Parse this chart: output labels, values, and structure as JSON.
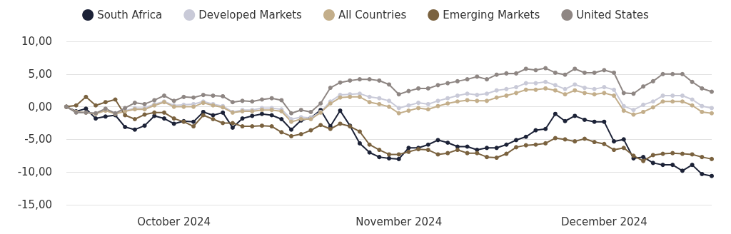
{
  "chart_data": {
    "type": "line",
    "categories": [
      null,
      null,
      null,
      null,
      null,
      null,
      null,
      null,
      null,
      null,
      null,
      "October 2024",
      null,
      null,
      null,
      null,
      null,
      null,
      null,
      null,
      null,
      null,
      null,
      null,
      null,
      null,
      null,
      null,
      null,
      null,
      null,
      null,
      null,
      null,
      "November 2024",
      null,
      null,
      null,
      null,
      null,
      null,
      null,
      null,
      null,
      null,
      null,
      null,
      null,
      null,
      null,
      null,
      null,
      null,
      null,
      null,
      "December 2024",
      null,
      null,
      null,
      null,
      null,
      null,
      null,
      null,
      null,
      null,
      null
    ],
    "series": [
      {
        "name": "South Africa",
        "color": "#1c2237",
        "values": [
          0,
          -0.7,
          -0.3,
          -1.8,
          -1.5,
          -1.3,
          -3.1,
          -3.5,
          -2.9,
          -1.4,
          -1.8,
          -2.6,
          -2.2,
          -2.3,
          -0.8,
          -1.3,
          -0.9,
          -3.2,
          -1.8,
          -1.4,
          -1.1,
          -1.3,
          -1.9,
          -3.5,
          -2.1,
          -1.7,
          -0.5,
          -3.0,
          -0.6,
          -2.9,
          -5.6,
          -7.0,
          -7.7,
          -7.9,
          -8.0,
          -6.3,
          -6.3,
          -5.8,
          -5.1,
          -5.5,
          -6.1,
          -6.1,
          -6.6,
          -6.3,
          -6.3,
          -5.8,
          -5.1,
          -4.6,
          -3.6,
          -3.4,
          -1.1,
          -2.2,
          -1.4,
          -2.0,
          -2.3,
          -2.3,
          -5.3,
          -5.0,
          -7.9,
          -7.7,
          -8.6,
          -8.9,
          -8.9,
          -9.8,
          -8.9,
          -10.3,
          -10.6
        ]
      },
      {
        "name": "Developed Markets",
        "color": "#c9cad8",
        "values": [
          0,
          -0.8,
          -0.9,
          -1.0,
          -0.5,
          -1.0,
          -0.6,
          -0.2,
          -0.2,
          0.4,
          0.8,
          0.2,
          0.3,
          0.4,
          0.8,
          0.4,
          0.1,
          -0.8,
          -0.5,
          -0.5,
          -0.2,
          -0.2,
          -0.4,
          -1.9,
          -1.6,
          -1.7,
          -0.8,
          0.8,
          1.8,
          1.9,
          2.0,
          1.5,
          1.3,
          0.9,
          -0.2,
          0.2,
          0.6,
          0.4,
          0.9,
          1.3,
          1.7,
          2.0,
          1.8,
          2.0,
          2.5,
          2.7,
          3.0,
          3.6,
          3.6,
          3.8,
          3.3,
          2.7,
          3.4,
          2.9,
          2.7,
          3.0,
          2.6,
          0.1,
          -0.5,
          0.3,
          0.8,
          1.7,
          1.7,
          1.7,
          1.1,
          0.1,
          -0.2
        ]
      },
      {
        "name": "All Countries",
        "color": "#c3ae8a",
        "values": [
          0,
          -0.8,
          -0.9,
          -1.1,
          -0.6,
          -1.1,
          -0.7,
          -0.4,
          -0.4,
          0.2,
          0.7,
          0,
          0,
          0,
          0.6,
          0.2,
          -0.1,
          -0.9,
          -0.7,
          -0.7,
          -0.5,
          -0.5,
          -0.7,
          -2.3,
          -1.9,
          -1.9,
          -0.9,
          0.5,
          1.4,
          1.5,
          1.5,
          0.7,
          0.4,
          0,
          -1.0,
          -0.6,
          -0.2,
          -0.4,
          0.1,
          0.5,
          0.8,
          1.0,
          0.9,
          0.9,
          1.4,
          1.7,
          2.1,
          2.6,
          2.6,
          2.8,
          2.5,
          1.9,
          2.5,
          2.1,
          1.9,
          2.1,
          1.7,
          -0.6,
          -1.2,
          -0.8,
          -0.1,
          0.8,
          0.8,
          0.8,
          0.2,
          -0.8,
          -1.0
        ]
      },
      {
        "name": "Emerging Markets",
        "color": "#7a623f",
        "values": [
          0,
          0.2,
          1.5,
          0.2,
          0.7,
          1.1,
          -1.3,
          -1.9,
          -1.2,
          -0.9,
          -0.9,
          -1.8,
          -2.3,
          -3.0,
          -1.3,
          -1.9,
          -2.5,
          -2.5,
          -3.0,
          -3.0,
          -2.9,
          -3.0,
          -3.9,
          -4.5,
          -4.2,
          -3.6,
          -2.8,
          -3.4,
          -2.6,
          -3.0,
          -3.8,
          -5.8,
          -6.6,
          -7.3,
          -7.3,
          -6.9,
          -6.5,
          -6.6,
          -7.3,
          -7.1,
          -6.6,
          -7.1,
          -7.1,
          -7.7,
          -7.8,
          -7.2,
          -6.2,
          -5.9,
          -5.8,
          -5.6,
          -4.8,
          -5.0,
          -5.3,
          -4.9,
          -5.4,
          -5.7,
          -6.6,
          -6.3,
          -7.5,
          -8.3,
          -7.4,
          -7.2,
          -7.1,
          -7.2,
          -7.3,
          -7.7,
          -8.0
        ]
      },
      {
        "name": "United States",
        "color": "#8e8683",
        "values": [
          0,
          -0.9,
          -0.9,
          -1.0,
          -0.3,
          -1.0,
          -0.2,
          0.6,
          0.4,
          1.0,
          1.7,
          0.9,
          1.5,
          1.4,
          1.8,
          1.7,
          1.6,
          0.7,
          0.9,
          0.8,
          1.1,
          1.3,
          1.0,
          -1.0,
          -0.5,
          -0.8,
          0.5,
          2.9,
          3.7,
          4.0,
          4.2,
          4.2,
          4.0,
          3.4,
          1.9,
          2.4,
          2.8,
          2.8,
          3.3,
          3.6,
          3.9,
          4.2,
          4.6,
          4.2,
          4.9,
          5.1,
          5.1,
          5.8,
          5.6,
          5.9,
          5.2,
          4.9,
          5.8,
          5.2,
          5.2,
          5.6,
          5.2,
          2.1,
          2.0,
          3.1,
          3.9,
          5.0,
          5.0,
          5.0,
          3.8,
          2.8,
          2.3
        ]
      }
    ],
    "ylim": [
      -15,
      10
    ],
    "yticks": [
      {
        "value": -15,
        "label": "-15,00"
      },
      {
        "value": -10,
        "label": "-10,00"
      },
      {
        "value": -5,
        "label": "-5,00"
      },
      {
        "value": 0,
        "label": "0,00"
      },
      {
        "value": 5,
        "label": "5,00"
      },
      {
        "value": 10,
        "label": "10,00"
      }
    ],
    "grid": "y",
    "legend": "top",
    "marker": "circle",
    "line_style": "solid"
  }
}
